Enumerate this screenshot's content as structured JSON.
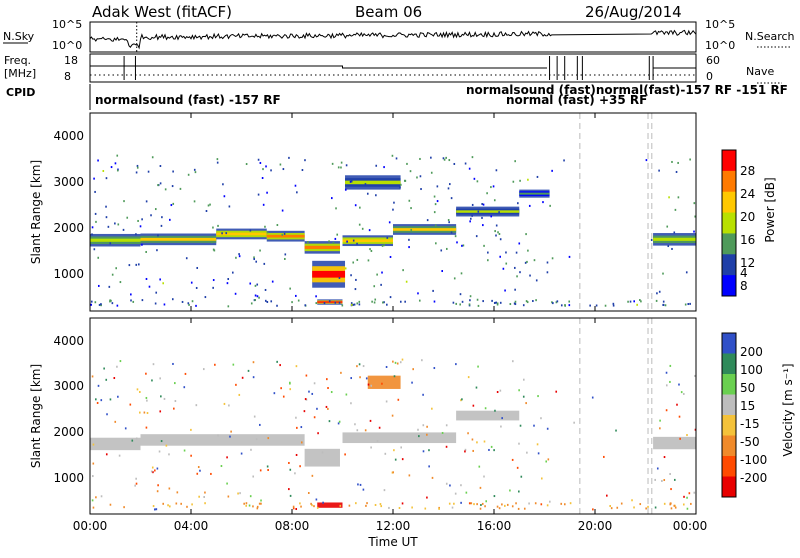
{
  "header": {
    "station": "Adak West (fitACF)",
    "beam": "Beam 06",
    "date": "26/Aug/2014"
  },
  "noise_panel": {
    "left_label": "N.Sky",
    "right_label": "N.Search",
    "left_ticks": [
      "10^5",
      "10^0"
    ],
    "right_ticks": [
      "10^5",
      "10^0"
    ]
  },
  "freq_panel": {
    "left_label_line1": "Freq.",
    "left_label_line2": "[MHz]",
    "right_label": "Nave",
    "left_ticks": [
      "18",
      "8"
    ],
    "right_ticks": [
      "60",
      "0"
    ]
  },
  "cpid": {
    "label": "CPID",
    "text_main": "normalsound (fast) -157 RF",
    "text_right_top": "normalsound (fast)normal(fast)-157 RF  -151 RF",
    "text_right_bottom": "normal (fast) +35 RF"
  },
  "power_panel": {
    "ylabel": "Slant Range [km]",
    "yticks": [
      "4000",
      "3000",
      "2000",
      "1000"
    ],
    "colorbar_label": "Power [dB]",
    "colorbar_ticks": [
      "28",
      "24",
      "20",
      "16",
      "12",
      "8",
      "4"
    ],
    "colorbar_colors": [
      "#ff0000",
      "#ff7a00",
      "#ffc800",
      "#b8e000",
      "#4f9a5a",
      "#1f3fa8",
      "#0000ff"
    ]
  },
  "velocity_panel": {
    "ylabel": "Slant Range [km]",
    "yticks": [
      "4000",
      "3000",
      "2000",
      "1000"
    ],
    "colorbar_label": "Velocity [m s⁻¹]",
    "colorbar_ticks": [
      "200",
      "100",
      "50",
      "15",
      "-15",
      "-50",
      "-100",
      "-200"
    ],
    "colorbar_colors": [
      "#3050c8",
      "#2f8a5a",
      "#6ad050",
      "#bdbdbd",
      "#f4c23a",
      "#f08a2a",
      "#ff4a00",
      "#e80000"
    ]
  },
  "xaxis": {
    "ticks": [
      "00:00",
      "04:00",
      "08:00",
      "12:00",
      "16:00",
      "20:00",
      "00:00"
    ],
    "label": "Time UT"
  },
  "chart_data": [
    {
      "type": "heatmap",
      "name": "power",
      "x_range_hours": [
        0,
        24
      ],
      "ylim": [
        180,
        4600
      ],
      "colorbar_range": [
        0,
        32
      ],
      "bands": [
        {
          "x_start": 0.0,
          "x_end": 2.0,
          "range_center": 1760,
          "range_half_width": 140,
          "power_db": 14
        },
        {
          "x_start": 2.0,
          "x_end": 5.0,
          "range_center": 1780,
          "range_half_width": 130,
          "power_db": 16
        },
        {
          "x_start": 5.0,
          "x_end": 7.0,
          "range_center": 1900,
          "range_half_width": 120,
          "power_db": 18
        },
        {
          "x_start": 7.0,
          "x_end": 8.5,
          "range_center": 1850,
          "range_half_width": 120,
          "power_db": 20
        },
        {
          "x_start": 8.5,
          "x_end": 9.9,
          "range_center": 1600,
          "range_half_width": 140,
          "power_db": 22
        },
        {
          "x_start": 10.0,
          "x_end": 12.0,
          "range_center": 1750,
          "range_half_width": 120,
          "power_db": 18
        },
        {
          "x_start": 12.0,
          "x_end": 14.5,
          "range_center": 2000,
          "range_half_width": 120,
          "power_db": 16
        },
        {
          "x_start": 14.5,
          "x_end": 17.0,
          "range_center": 2400,
          "range_half_width": 110,
          "power_db": 12
        },
        {
          "x_start": 17.0,
          "x_end": 18.2,
          "range_center": 2800,
          "range_half_width": 90,
          "power_db": 8
        },
        {
          "x_start": 22.3,
          "x_end": 24.0,
          "range_center": 1780,
          "range_half_width": 140,
          "power_db": 14
        },
        {
          "x_start": 9.0,
          "x_end": 10.0,
          "range_center": 380,
          "range_half_width": 60,
          "power_db": 26
        },
        {
          "x_start": 8.8,
          "x_end": 10.1,
          "range_center": 1000,
          "range_half_width": 300,
          "power_db": 24
        },
        {
          "x_start": 10.1,
          "x_end": 12.3,
          "range_center": 3050,
          "range_half_width": 160,
          "power_db": 10
        }
      ]
    },
    {
      "type": "heatmap",
      "name": "velocity",
      "x_range_hours": [
        0,
        24
      ],
      "ylim": [
        180,
        4600
      ],
      "colorbar_range": [
        -200,
        200
      ],
      "bands": [
        {
          "x_start": 0.0,
          "x_end": 2.0,
          "range_center": 1760,
          "range_half_width": 140,
          "velocity": 0
        },
        {
          "x_start": 2.0,
          "x_end": 8.5,
          "range_center": 1850,
          "range_half_width": 130,
          "velocity": 0
        },
        {
          "x_start": 8.5,
          "x_end": 9.9,
          "range_center": 1450,
          "range_half_width": 200,
          "velocity": 0
        },
        {
          "x_start": 10.0,
          "x_end": 14.5,
          "range_center": 1900,
          "range_half_width": 120,
          "velocity": 0
        },
        {
          "x_start": 14.5,
          "x_end": 17.0,
          "range_center": 2400,
          "range_half_width": 110,
          "velocity": 0
        },
        {
          "x_start": 22.3,
          "x_end": 24.0,
          "range_center": 1780,
          "range_half_width": 140,
          "velocity": 0
        },
        {
          "x_start": 9.0,
          "x_end": 10.0,
          "range_center": 380,
          "range_half_width": 60,
          "velocity": -200
        },
        {
          "x_start": 11.0,
          "x_end": 12.3,
          "range_center": 3150,
          "range_half_width": 150,
          "velocity": -50
        }
      ]
    }
  ]
}
